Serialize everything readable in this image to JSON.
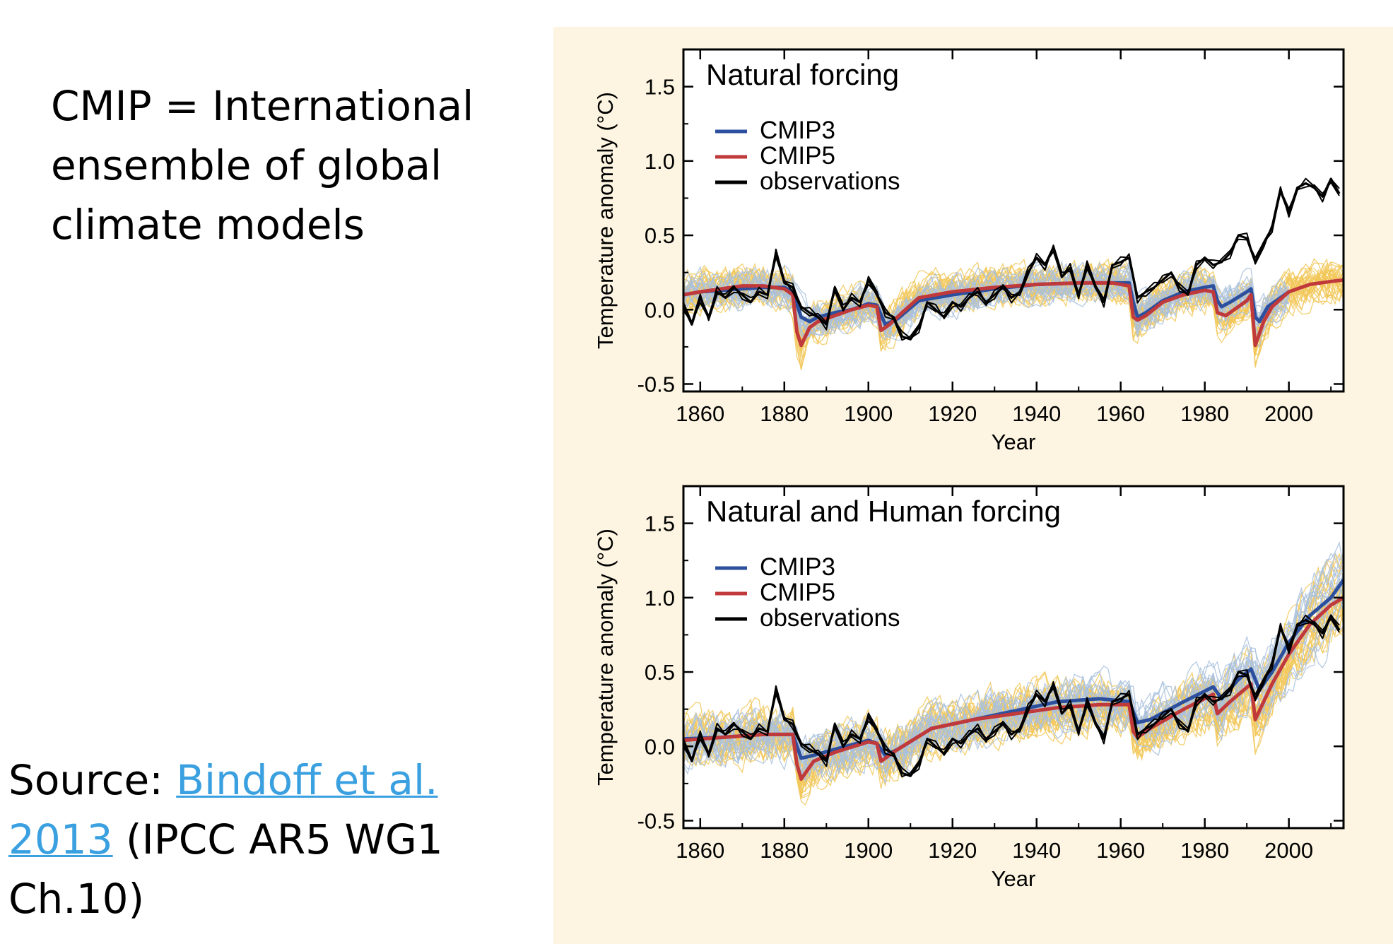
{
  "slide": {
    "intro_line1": "CMIP = International",
    "intro_line2": "ensemble  of global",
    "intro_line3": "climate  models",
    "source_prefix": "Source: ",
    "source_link_line1": "Bindoff et al.",
    "source_link_line2": "2013",
    "source_suffix_line2": "  (IPCC AR5  WG1",
    "source_line3": "Ch.10)"
  },
  "colors": {
    "panel_background": "#fdf5e1",
    "cmip3": "#2c4f9e",
    "cmip3_members": "#a9c1dd",
    "cmip5": "#c0393b",
    "cmip5_members": "#f2c85a",
    "observations": "#000000",
    "link": "#3aa0e0"
  },
  "chart_data": [
    {
      "type": "line",
      "title": "Natural forcing",
      "xlabel": "Year",
      "ylabel": "Temperature anomaly (°C)",
      "xlim": [
        1856,
        2013
      ],
      "ylim": [
        -0.55,
        1.75
      ],
      "xticks": [
        "1860",
        "1880",
        "1900",
        "1920",
        "1940",
        "1960",
        "1980",
        "2000"
      ],
      "yticks": [
        "-0.5",
        "0.0",
        "0.5",
        "1.0",
        "1.5"
      ],
      "legend": [
        "CMIP3",
        "CMIP5",
        "observations"
      ],
      "legend_position": "top-left",
      "series": [
        {
          "name": "CMIP3",
          "x": [
            1856,
            1860,
            1865,
            1870,
            1875,
            1880,
            1882,
            1884,
            1886,
            1888,
            1892,
            1896,
            1900,
            1902,
            1904,
            1907,
            1912,
            1920,
            1930,
            1940,
            1950,
            1958,
            1962,
            1963,
            1964,
            1966,
            1970,
            1975,
            1980,
            1982,
            1983,
            1984,
            1986,
            1990,
            1991,
            1992,
            1993,
            1995,
            2000
          ],
          "y": [
            0.1,
            0.12,
            0.13,
            0.14,
            0.15,
            0.15,
            0.12,
            -0.05,
            -0.08,
            -0.05,
            -0.02,
            0.0,
            0.04,
            0.03,
            -0.1,
            -0.06,
            0.06,
            0.1,
            0.14,
            0.17,
            0.18,
            0.18,
            0.18,
            0.05,
            -0.05,
            -0.02,
            0.06,
            0.12,
            0.15,
            0.16,
            0.06,
            0.02,
            0.05,
            0.12,
            0.14,
            -0.05,
            -0.08,
            0.02,
            0.12
          ]
        },
        {
          "name": "CMIP5",
          "x": [
            1856,
            1860,
            1865,
            1870,
            1875,
            1880,
            1882,
            1883,
            1884,
            1886,
            1888,
            1892,
            1896,
            1900,
            1902,
            1903,
            1905,
            1908,
            1912,
            1920,
            1930,
            1940,
            1950,
            1958,
            1962,
            1963,
            1964,
            1966,
            1970,
            1975,
            1980,
            1982,
            1983,
            1985,
            1990,
            1991,
            1992,
            1994,
            1996,
            2000,
            2005,
            2010,
            2013
          ],
          "y": [
            0.1,
            0.12,
            0.14,
            0.16,
            0.16,
            0.14,
            0.1,
            -0.15,
            -0.24,
            -0.12,
            -0.08,
            -0.04,
            0.0,
            0.03,
            0.02,
            -0.14,
            -0.1,
            -0.02,
            0.08,
            0.12,
            0.15,
            0.17,
            0.18,
            0.18,
            0.16,
            -0.05,
            -0.07,
            -0.04,
            0.05,
            0.1,
            0.13,
            0.12,
            -0.02,
            -0.04,
            0.06,
            0.1,
            -0.24,
            -0.08,
            0.02,
            0.12,
            0.17,
            0.19,
            0.2
          ]
        },
        {
          "name": "observations",
          "x": [
            1856,
            1858,
            1860,
            1862,
            1864,
            1866,
            1868,
            1870,
            1872,
            1874,
            1876,
            1878,
            1880,
            1882,
            1884,
            1886,
            1888,
            1890,
            1892,
            1894,
            1896,
            1898,
            1900,
            1902,
            1904,
            1906,
            1908,
            1910,
            1912,
            1914,
            1916,
            1918,
            1920,
            1922,
            1924,
            1926,
            1928,
            1930,
            1932,
            1934,
            1936,
            1938,
            1940,
            1942,
            1944,
            1946,
            1948,
            1950,
            1952,
            1954,
            1956,
            1958,
            1960,
            1962,
            1964,
            1966,
            1968,
            1970,
            1972,
            1974,
            1976,
            1978,
            1980,
            1982,
            1984,
            1986,
            1988,
            1990,
            1992,
            1994,
            1996,
            1998,
            2000,
            2002,
            2004,
            2006,
            2008,
            2010,
            2012
          ],
          "y": [
            0.02,
            -0.1,
            0.08,
            -0.05,
            0.12,
            0.08,
            0.15,
            0.1,
            0.05,
            0.12,
            0.1,
            0.38,
            0.18,
            0.15,
            0.02,
            -0.02,
            -0.05,
            -0.1,
            0.15,
            0.0,
            0.08,
            0.05,
            0.2,
            0.1,
            -0.02,
            -0.05,
            -0.18,
            -0.2,
            -0.12,
            0.05,
            0.0,
            -0.05,
            0.05,
            0.02,
            0.08,
            0.12,
            0.05,
            0.1,
            0.15,
            0.08,
            0.12,
            0.25,
            0.35,
            0.3,
            0.42,
            0.22,
            0.28,
            0.1,
            0.3,
            0.15,
            0.05,
            0.3,
            0.32,
            0.35,
            0.08,
            0.12,
            0.15,
            0.2,
            0.25,
            0.15,
            0.1,
            0.3,
            0.35,
            0.3,
            0.32,
            0.38,
            0.5,
            0.48,
            0.32,
            0.45,
            0.55,
            0.8,
            0.65,
            0.82,
            0.85,
            0.82,
            0.76,
            0.88,
            0.78
          ]
        }
      ]
    },
    {
      "type": "line",
      "title": "Natural and Human forcing",
      "xlabel": "Year",
      "ylabel": "Temperature anomaly (°C)",
      "xlim": [
        1856,
        2013
      ],
      "ylim": [
        -0.55,
        1.75
      ],
      "xticks": [
        "1860",
        "1880",
        "1900",
        "1920",
        "1940",
        "1960",
        "1980",
        "2000"
      ],
      "yticks": [
        "-0.5",
        "0.0",
        "0.5",
        "1.0",
        "1.5"
      ],
      "legend": [
        "CMIP3",
        "CMIP5",
        "observations"
      ],
      "legend_position": "top-left",
      "series": [
        {
          "name": "CMIP3",
          "x": [
            1856,
            1865,
            1875,
            1882,
            1884,
            1887,
            1892,
            1900,
            1902,
            1904,
            1907,
            1915,
            1925,
            1935,
            1945,
            1955,
            1962,
            1964,
            1967,
            1975,
            1982,
            1984,
            1988,
            1991,
            1993,
            1996,
            2000,
            2005,
            2010,
            2013
          ],
          "y": [
            0.05,
            0.06,
            0.08,
            0.08,
            -0.08,
            -0.06,
            -0.02,
            0.04,
            0.02,
            -0.06,
            -0.02,
            0.12,
            0.18,
            0.24,
            0.3,
            0.32,
            0.3,
            0.16,
            0.18,
            0.3,
            0.4,
            0.32,
            0.45,
            0.52,
            0.38,
            0.5,
            0.7,
            0.88,
            1.0,
            1.12
          ]
        },
        {
          "name": "CMIP5",
          "x": [
            1856,
            1865,
            1875,
            1882,
            1883,
            1884,
            1887,
            1892,
            1900,
            1902,
            1903,
            1907,
            1915,
            1925,
            1935,
            1945,
            1955,
            1962,
            1963,
            1964,
            1967,
            1975,
            1982,
            1983,
            1986,
            1991,
            1992,
            1994,
            1996,
            2000,
            2005,
            2010,
            2013
          ],
          "y": [
            0.04,
            0.06,
            0.08,
            0.08,
            -0.12,
            -0.22,
            -0.1,
            -0.04,
            0.03,
            0.02,
            -0.1,
            -0.02,
            0.12,
            0.18,
            0.22,
            0.26,
            0.28,
            0.28,
            0.1,
            0.06,
            0.12,
            0.25,
            0.35,
            0.22,
            0.3,
            0.42,
            0.18,
            0.3,
            0.42,
            0.62,
            0.82,
            0.95,
            1.0
          ]
        },
        {
          "name": "observations",
          "x": [
            1856,
            1858,
            1860,
            1862,
            1864,
            1866,
            1868,
            1870,
            1872,
            1874,
            1876,
            1878,
            1880,
            1882,
            1884,
            1886,
            1888,
            1890,
            1892,
            1894,
            1896,
            1898,
            1900,
            1902,
            1904,
            1906,
            1908,
            1910,
            1912,
            1914,
            1916,
            1918,
            1920,
            1922,
            1924,
            1926,
            1928,
            1930,
            1932,
            1934,
            1936,
            1938,
            1940,
            1942,
            1944,
            1946,
            1948,
            1950,
            1952,
            1954,
            1956,
            1958,
            1960,
            1962,
            1964,
            1966,
            1968,
            1970,
            1972,
            1974,
            1976,
            1978,
            1980,
            1982,
            1984,
            1986,
            1988,
            1990,
            1992,
            1994,
            1996,
            1998,
            2000,
            2002,
            2004,
            2006,
            2008,
            2010,
            2012
          ],
          "y": [
            0.02,
            -0.1,
            0.08,
            -0.05,
            0.12,
            0.08,
            0.15,
            0.1,
            0.05,
            0.12,
            0.1,
            0.38,
            0.18,
            0.15,
            0.02,
            -0.02,
            -0.05,
            -0.1,
            0.15,
            0.0,
            0.08,
            0.05,
            0.2,
            0.1,
            -0.02,
            -0.05,
            -0.18,
            -0.2,
            -0.12,
            0.05,
            0.0,
            -0.05,
            0.05,
            0.02,
            0.08,
            0.12,
            0.05,
            0.1,
            0.15,
            0.08,
            0.12,
            0.25,
            0.35,
            0.3,
            0.42,
            0.22,
            0.28,
            0.1,
            0.3,
            0.15,
            0.05,
            0.3,
            0.32,
            0.35,
            0.08,
            0.12,
            0.15,
            0.2,
            0.25,
            0.15,
            0.1,
            0.3,
            0.35,
            0.3,
            0.32,
            0.38,
            0.5,
            0.48,
            0.32,
            0.45,
            0.55,
            0.8,
            0.65,
            0.82,
            0.85,
            0.82,
            0.76,
            0.88,
            0.78
          ]
        }
      ]
    }
  ]
}
